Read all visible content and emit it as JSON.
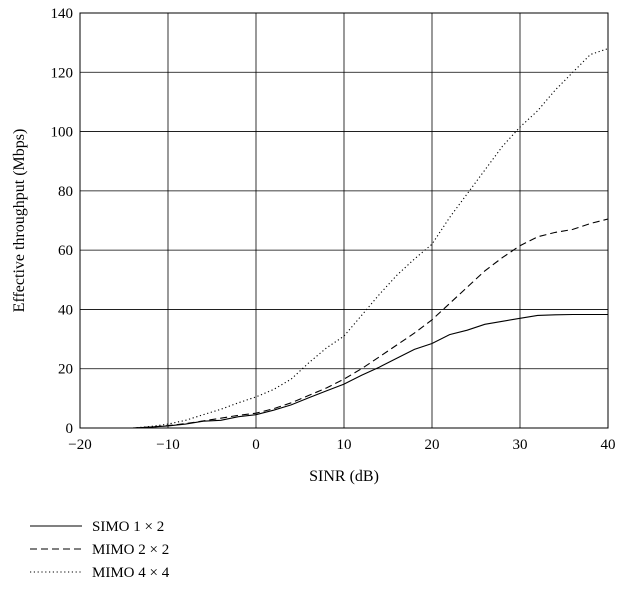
{
  "chart_data": {
    "type": "line",
    "title": "",
    "xlabel": "SINR (dB)",
    "ylabel": "Effective throughput (Mbps)",
    "xlim": [
      -20,
      40
    ],
    "ylim": [
      0,
      140
    ],
    "xticks": [
      -20,
      -10,
      0,
      10,
      20,
      30,
      40
    ],
    "yticks": [
      0,
      20,
      40,
      60,
      80,
      100,
      120,
      140
    ],
    "xtick_labels": [
      "−20",
      "−10",
      "0",
      "10",
      "20",
      "30",
      "40"
    ],
    "ytick_labels": [
      "0",
      "20",
      "40",
      "60",
      "80",
      "100",
      "120",
      "140"
    ],
    "grid": true,
    "legend_position": "bottom-left, outside plot",
    "series": [
      {
        "name": "SIMO 1 × 2",
        "style": "solid",
        "x": [
          -14,
          -12,
          -10,
          -8,
          -6,
          -4,
          -2,
          0,
          2,
          4,
          6,
          8,
          10,
          12,
          14,
          16,
          18,
          20,
          22,
          24,
          26,
          28,
          30,
          32,
          34,
          36,
          38,
          40
        ],
        "y": [
          0,
          0.3,
          0.7,
          1.3,
          2.3,
          2.6,
          3.8,
          4.5,
          6,
          7.8,
          10.2,
          12.5,
          14.8,
          17.8,
          20.5,
          23.5,
          26.5,
          28.5,
          31.5,
          33,
          35,
          36,
          37,
          38,
          38.2,
          38.3,
          38.3,
          38.3
        ]
      },
      {
        "name": "MIMO 2 × 2",
        "style": "dashed",
        "x": [
          -14,
          -12,
          -10,
          -8,
          -6,
          -4,
          -2,
          0,
          2,
          4,
          6,
          8,
          10,
          12,
          14,
          16,
          18,
          20,
          22,
          24,
          26,
          28,
          30,
          32,
          34,
          36,
          38,
          40
        ],
        "y": [
          0,
          0.3,
          0.8,
          1.5,
          2.4,
          3.3,
          4.3,
          5,
          6.5,
          8.5,
          11,
          13.5,
          16.5,
          20,
          24,
          28,
          32,
          36.5,
          42,
          47.5,
          53,
          57.5,
          61.5,
          64.5,
          66,
          67,
          69,
          70.5
        ]
      },
      {
        "name": "MIMO 4 × 4",
        "style": "dotted",
        "x": [
          -14,
          -12,
          -10,
          -8,
          -6,
          -4,
          -2,
          0,
          2,
          4,
          6,
          8,
          10,
          12,
          14,
          16,
          18,
          20,
          22,
          24,
          26,
          28,
          30,
          32,
          34,
          36,
          38,
          40
        ],
        "y": [
          0,
          0.5,
          1.3,
          2.6,
          4.5,
          6.3,
          8.5,
          10.5,
          13,
          16.5,
          22,
          27,
          31,
          38,
          45,
          51.5,
          57,
          62,
          71,
          79,
          87,
          95,
          101.5,
          107,
          114,
          120,
          126,
          128
        ]
      }
    ]
  }
}
